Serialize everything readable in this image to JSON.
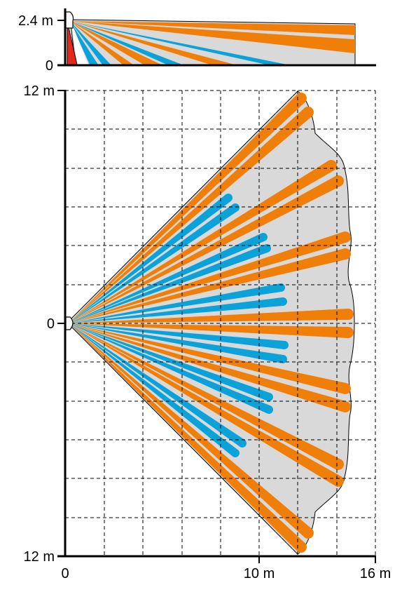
{
  "side_view": {
    "y_labels": [
      "2.4 m",
      "0"
    ]
  },
  "top_view": {
    "y_labels": [
      "12 m",
      "0",
      "12 m"
    ],
    "x_labels": [
      "0",
      "10 m",
      "16 m"
    ]
  },
  "colors": {
    "long_beam": "#f07f09",
    "short_beam": "#0aa2d9",
    "creep_zone": "#e3281c",
    "coverage_area": "#d9d9d9",
    "grid": "#000000"
  }
}
